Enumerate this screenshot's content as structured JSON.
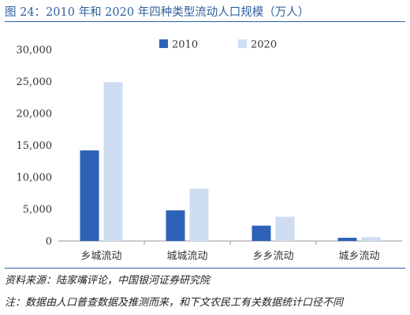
{
  "title": "图 24：2010 年和 2020 年四种类型流动人口规模（万人）",
  "source_note": "资料来源：陆家嘴评论，中国银河证券研究院",
  "footnote": "注：数据由人口普查数据及推测而来，和下文农民工有关数据统计口径不同",
  "chart_data": {
    "type": "bar",
    "categories": [
      "乡城流动",
      "城城流动",
      "乡乡流动",
      "城乡流动"
    ],
    "series": [
      {
        "name": "2010",
        "color": "#2e62b8",
        "values": [
          14200,
          4800,
          2400,
          500
        ]
      },
      {
        "name": "2020",
        "color": "#cfddf3",
        "values": [
          24900,
          8200,
          3800,
          600
        ]
      }
    ],
    "ylim": [
      0,
      30000
    ],
    "yticks": [
      "0",
      "5,000",
      "10,000",
      "15,000",
      "20,000",
      "25,000",
      "30,000"
    ],
    "legend_position": "top-center",
    "grid": false
  }
}
